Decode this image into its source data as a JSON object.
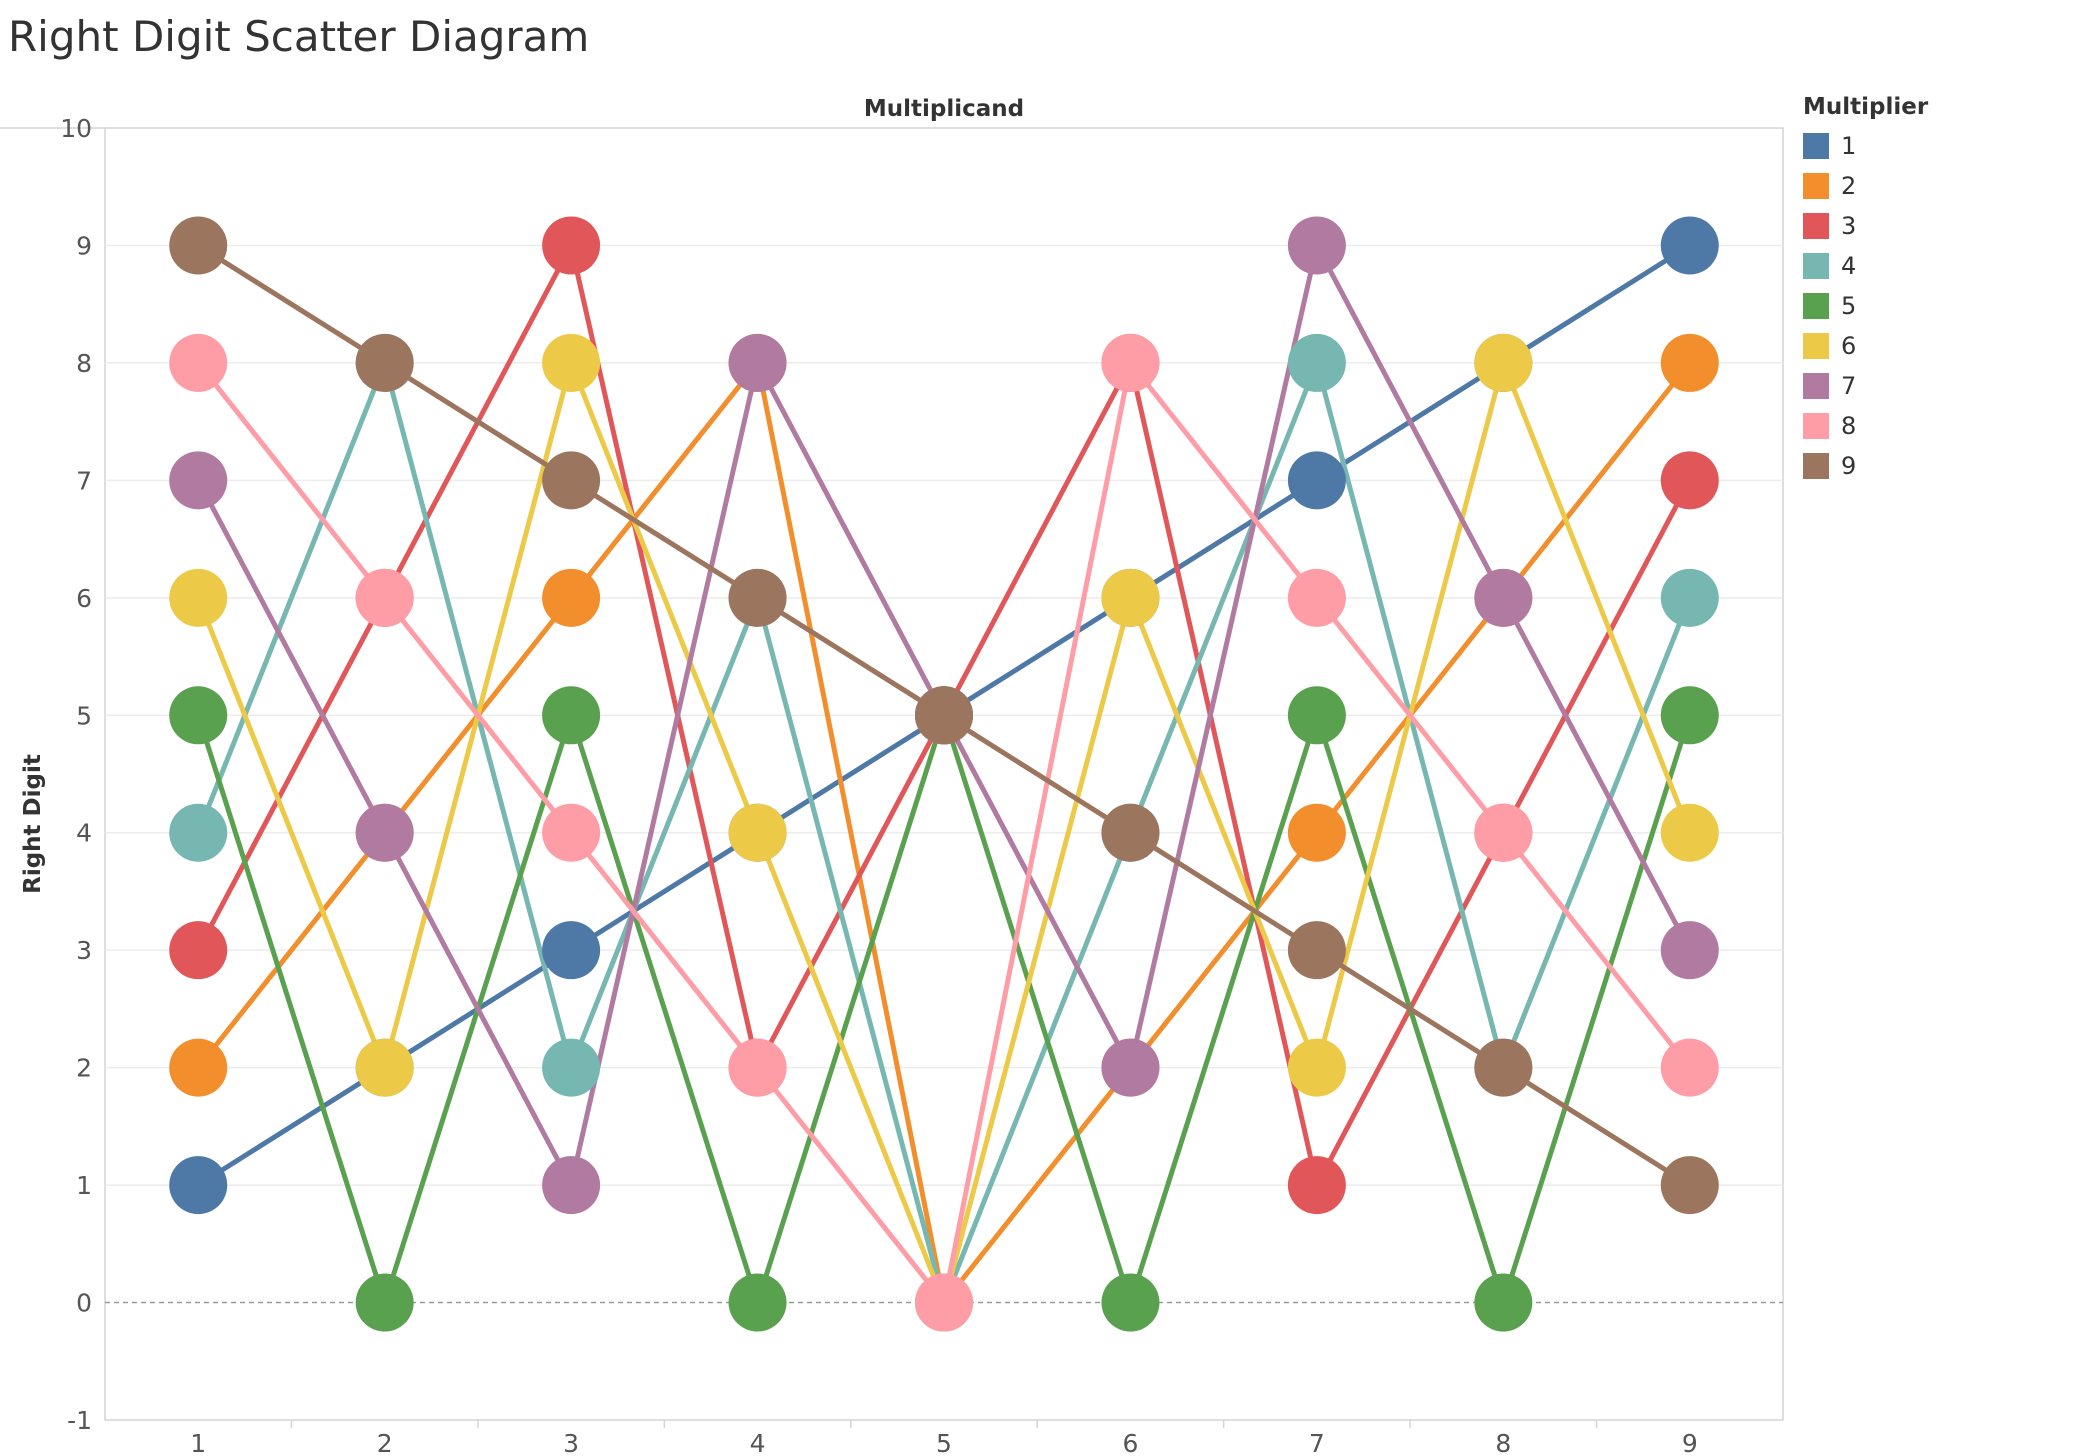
{
  "title": "Right Digit Scatter Diagram",
  "chart_data": {
    "type": "line",
    "title": "Right Digit Scatter Diagram",
    "xlabel": "Multiplicand",
    "ylabel": "Right Digit",
    "categories": [
      "1",
      "2",
      "3",
      "4",
      "5",
      "6",
      "7",
      "8",
      "9"
    ],
    "x": [
      1,
      2,
      3,
      4,
      5,
      6,
      7,
      8,
      9
    ],
    "ylim": [
      -1,
      10
    ],
    "yticks": [
      "10",
      "9",
      "8",
      "7",
      "6",
      "5",
      "4",
      "3",
      "2",
      "1",
      "0",
      "-1"
    ],
    "ytick_values": [
      10,
      9,
      8,
      7,
      6,
      5,
      4,
      3,
      2,
      1,
      0,
      -1
    ],
    "legend_title": "Multiplier",
    "legend_position": "right",
    "markers": "large circles",
    "zero_line": "dashed",
    "series": [
      {
        "name": "1",
        "color": "#4e79a7",
        "values": [
          1,
          2,
          3,
          4,
          5,
          6,
          7,
          8,
          9
        ]
      },
      {
        "name": "2",
        "color": "#f28e2b",
        "values": [
          2,
          4,
          6,
          8,
          0,
          2,
          4,
          6,
          8
        ]
      },
      {
        "name": "3",
        "color": "#e15759",
        "values": [
          3,
          6,
          9,
          2,
          5,
          8,
          1,
          4,
          7
        ]
      },
      {
        "name": "4",
        "color": "#76b7b2",
        "values": [
          4,
          8,
          2,
          6,
          0,
          4,
          8,
          2,
          6
        ]
      },
      {
        "name": "5",
        "color": "#59a14f",
        "values": [
          5,
          0,
          5,
          0,
          5,
          0,
          5,
          0,
          5
        ]
      },
      {
        "name": "6",
        "color": "#edc948",
        "values": [
          6,
          2,
          8,
          4,
          0,
          6,
          2,
          8,
          4
        ]
      },
      {
        "name": "7",
        "color": "#b07aa1",
        "values": [
          7,
          4,
          1,
          8,
          5,
          2,
          9,
          6,
          3
        ]
      },
      {
        "name": "8",
        "color": "#ff9da7",
        "values": [
          8,
          6,
          4,
          2,
          0,
          8,
          6,
          4,
          2
        ]
      },
      {
        "name": "9",
        "color": "#9c755f",
        "values": [
          9,
          8,
          7,
          6,
          5,
          4,
          3,
          2,
          1
        ]
      }
    ]
  }
}
